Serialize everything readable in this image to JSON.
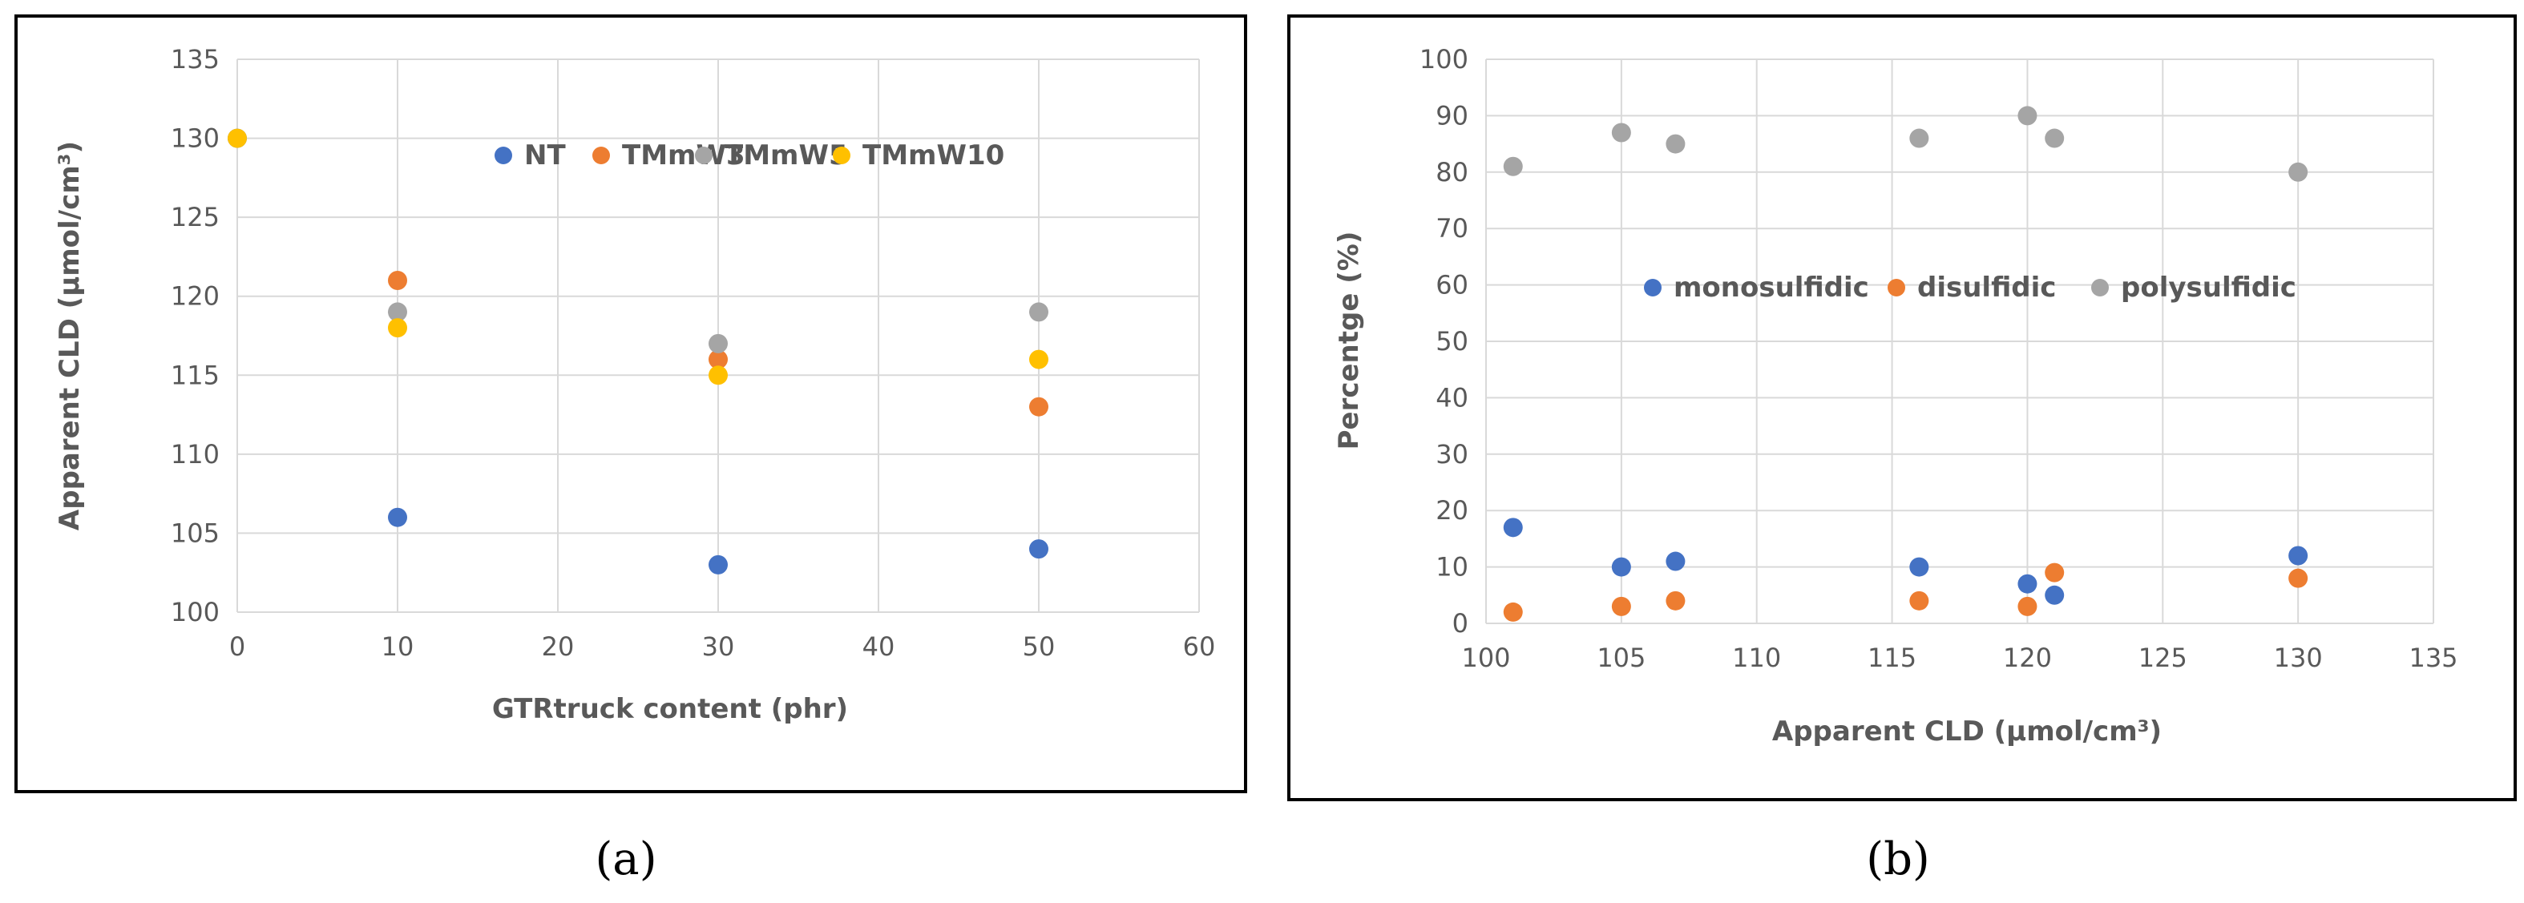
{
  "chart_data": [
    {
      "type": "scatter",
      "panel_label": "a",
      "xlabel": "GTRtruck content (phr)",
      "ylabel": "Apparent CLD (μmol/cm³)",
      "xlim": [
        0,
        60
      ],
      "ylim": [
        100,
        135
      ],
      "xticks": [
        0,
        10,
        20,
        30,
        40,
        50,
        60
      ],
      "yticks": [
        100,
        105,
        110,
        115,
        120,
        125,
        130,
        135
      ],
      "grid": true,
      "legend_position": "top-right",
      "series": [
        {
          "name": "NT",
          "color": "#4472C4",
          "points": [
            [
              0,
              130
            ],
            [
              10,
              106
            ],
            [
              30,
              103
            ],
            [
              50,
              104
            ]
          ]
        },
        {
          "name": "TMmW3",
          "color": "#ED7D31",
          "points": [
            [
              10,
              121
            ],
            [
              30,
              116
            ],
            [
              50,
              113
            ]
          ]
        },
        {
          "name": "TMmW5",
          "color": "#A5A5A5",
          "points": [
            [
              10,
              119
            ],
            [
              30,
              117
            ],
            [
              50,
              119
            ]
          ]
        },
        {
          "name": "TMmW10",
          "color": "#FFC000",
          "points": [
            [
              0,
              130
            ],
            [
              10,
              118
            ],
            [
              30,
              115
            ],
            [
              50,
              116
            ]
          ]
        }
      ]
    },
    {
      "type": "scatter",
      "panel_label": "b",
      "xlabel": "Apparent CLD (μmol/cm³)",
      "ylabel": "Percentge (%)",
      "xlim": [
        100,
        135
      ],
      "ylim": [
        0,
        100
      ],
      "xticks": [
        100,
        105,
        110,
        115,
        120,
        125,
        130,
        135
      ],
      "yticks": [
        0,
        10,
        20,
        30,
        40,
        50,
        60,
        70,
        80,
        90,
        100
      ],
      "grid": true,
      "legend_position": "center",
      "series": [
        {
          "name": "monosulfidic",
          "color": "#4472C4",
          "points": [
            [
              101,
              17
            ],
            [
              105,
              10
            ],
            [
              107,
              11
            ],
            [
              116,
              10
            ],
            [
              120,
              7
            ],
            [
              121,
              5
            ],
            [
              130,
              12
            ]
          ]
        },
        {
          "name": "disulfidic",
          "color": "#ED7D31",
          "points": [
            [
              101,
              2
            ],
            [
              105,
              3
            ],
            [
              107,
              4
            ],
            [
              116,
              4
            ],
            [
              120,
              3
            ],
            [
              121,
              9
            ],
            [
              130,
              8
            ]
          ]
        },
        {
          "name": "polysulfidic",
          "color": "#A5A5A5",
          "points": [
            [
              101,
              81
            ],
            [
              105,
              87
            ],
            [
              107,
              85
            ],
            [
              116,
              86
            ],
            [
              120,
              90
            ],
            [
              121,
              86
            ],
            [
              130,
              80
            ]
          ]
        }
      ]
    }
  ],
  "captions": {
    "a": "(a)",
    "b": "(b)"
  }
}
